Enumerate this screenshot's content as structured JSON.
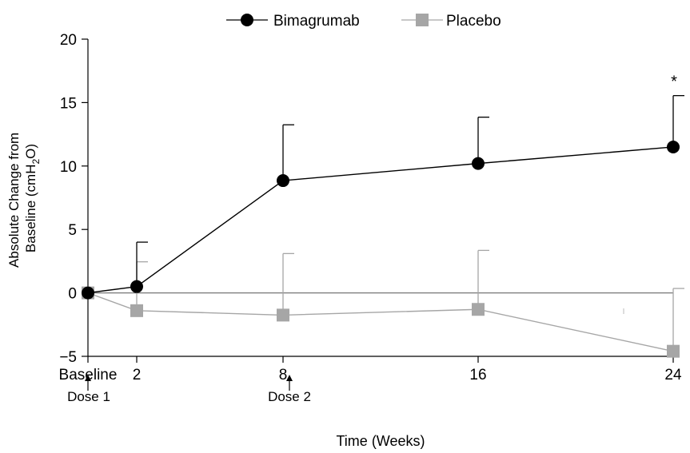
{
  "chart_data": {
    "type": "line",
    "xlabel": "Time (Weeks)",
    "ylabel_line1": "Absolute Change from",
    "ylabel_line2_pre": "Baseline (cmH",
    "ylabel_sub": "2",
    "ylabel_line2_post": "O)",
    "ylim": [
      -5,
      20
    ],
    "yticks": [
      -5,
      0,
      5,
      10,
      15,
      20
    ],
    "x": [
      0,
      2,
      8,
      16,
      24
    ],
    "xtick_labels": [
      "Baseline",
      "2",
      "8",
      "16",
      "24"
    ],
    "legend_position": "top-center",
    "series": [
      {
        "name": "Bimagrumab",
        "marker": "circle",
        "color": "#000000",
        "values": [
          0,
          0.5,
          8.85,
          10.2,
          11.5
        ],
        "error_upper": [
          null,
          4.0,
          13.25,
          13.85,
          15.55
        ],
        "error_direction": "up"
      },
      {
        "name": "Placebo",
        "marker": "square",
        "color": "#a6a6a6",
        "values": [
          0,
          -1.4,
          -1.75,
          -1.3,
          -4.6
        ],
        "error_upper": [
          null,
          2.45,
          3.1,
          3.35,
          0.35
        ],
        "error_direction": "up"
      }
    ],
    "annotations": [
      {
        "text": "*",
        "x": 24,
        "y": 16.7
      },
      {
        "text": "Dose 1",
        "x": 0
      },
      {
        "text": "Dose 2",
        "x": 8
      }
    ]
  }
}
